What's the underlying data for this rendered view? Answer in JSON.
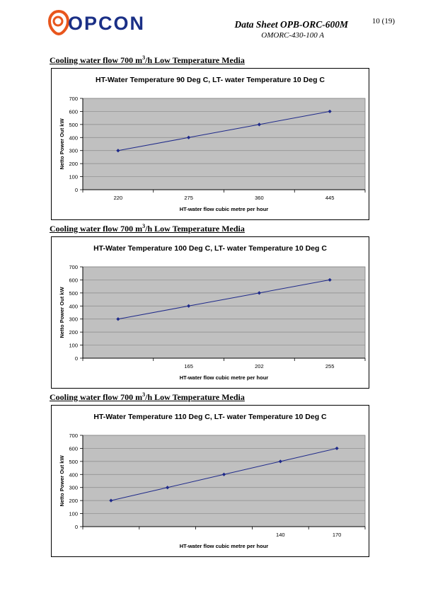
{
  "header": {
    "logo_text": "OPCON",
    "title": "Data Sheet OPB-ORC-600M",
    "subtitle": "OMORC-430-100 A",
    "page_number": "10 (19)",
    "brand_color": "#1a2f86",
    "logo_ring_color": "#e8561d"
  },
  "sections": [
    {
      "heading_pre": "Cooling water flow 700 m",
      "heading_sup": "3",
      "heading_post": "/h Low Temperature Media"
    },
    {
      "heading_pre": "Cooling water flow 700 m",
      "heading_sup": "3",
      "heading_post": "/h Low Temperature Media"
    },
    {
      "heading_pre": "Cooling water flow 700 m",
      "heading_sup": "3",
      "heading_post": "/h Low Temperature Media"
    }
  ],
  "chart_data": [
    {
      "type": "line",
      "title": "HT-Water Temperature 90 Deg C, LT- water Temperature 10 Deg C",
      "xlabel": "HT-water flow cubic metre per hour",
      "ylabel": "Netto Power Out kW",
      "categories": [
        "220",
        "275",
        "360",
        "445"
      ],
      "x_tick_labels": [
        "220",
        "275",
        "360",
        "445"
      ],
      "values": [
        300,
        400,
        500,
        600
      ],
      "ylim": [
        0,
        700
      ],
      "yticks": [
        0,
        100,
        200,
        300,
        400,
        500,
        600,
        700
      ],
      "grid": true,
      "plot_bg": "#c0c0c0",
      "line_color": "#1f2a8a"
    },
    {
      "type": "line",
      "title": "HT-Water Temperature 100 Deg C, LT- water Temperature 10 Deg C",
      "xlabel": "HT-water flow cubic metre per hour",
      "ylabel": "Netto Power Out kW",
      "categories": [
        "",
        "165",
        "202",
        "255"
      ],
      "x_tick_labels": [
        "",
        "165",
        "202",
        "255"
      ],
      "values": [
        300,
        400,
        500,
        600
      ],
      "ylim": [
        0,
        700
      ],
      "yticks": [
        0,
        100,
        200,
        300,
        400,
        500,
        600,
        700
      ],
      "grid": true,
      "plot_bg": "#c0c0c0",
      "line_color": "#1f2a8a"
    },
    {
      "type": "line",
      "title": "HT-Water Temperature 110 Deg C, LT- water Temperature 10 Deg C",
      "xlabel": "HT-water flow cubic metre per hour",
      "ylabel": "Netto Power Out kW",
      "categories": [
        "",
        "",
        "",
        "140",
        "170"
      ],
      "x_tick_labels": [
        "",
        "",
        "",
        "140",
        "170"
      ],
      "values": [
        200,
        300,
        400,
        500,
        600
      ],
      "ylim": [
        0,
        700
      ],
      "yticks": [
        0,
        100,
        200,
        300,
        400,
        500,
        600,
        700
      ],
      "grid": true,
      "plot_bg": "#c0c0c0",
      "line_color": "#1f2a8a"
    }
  ]
}
